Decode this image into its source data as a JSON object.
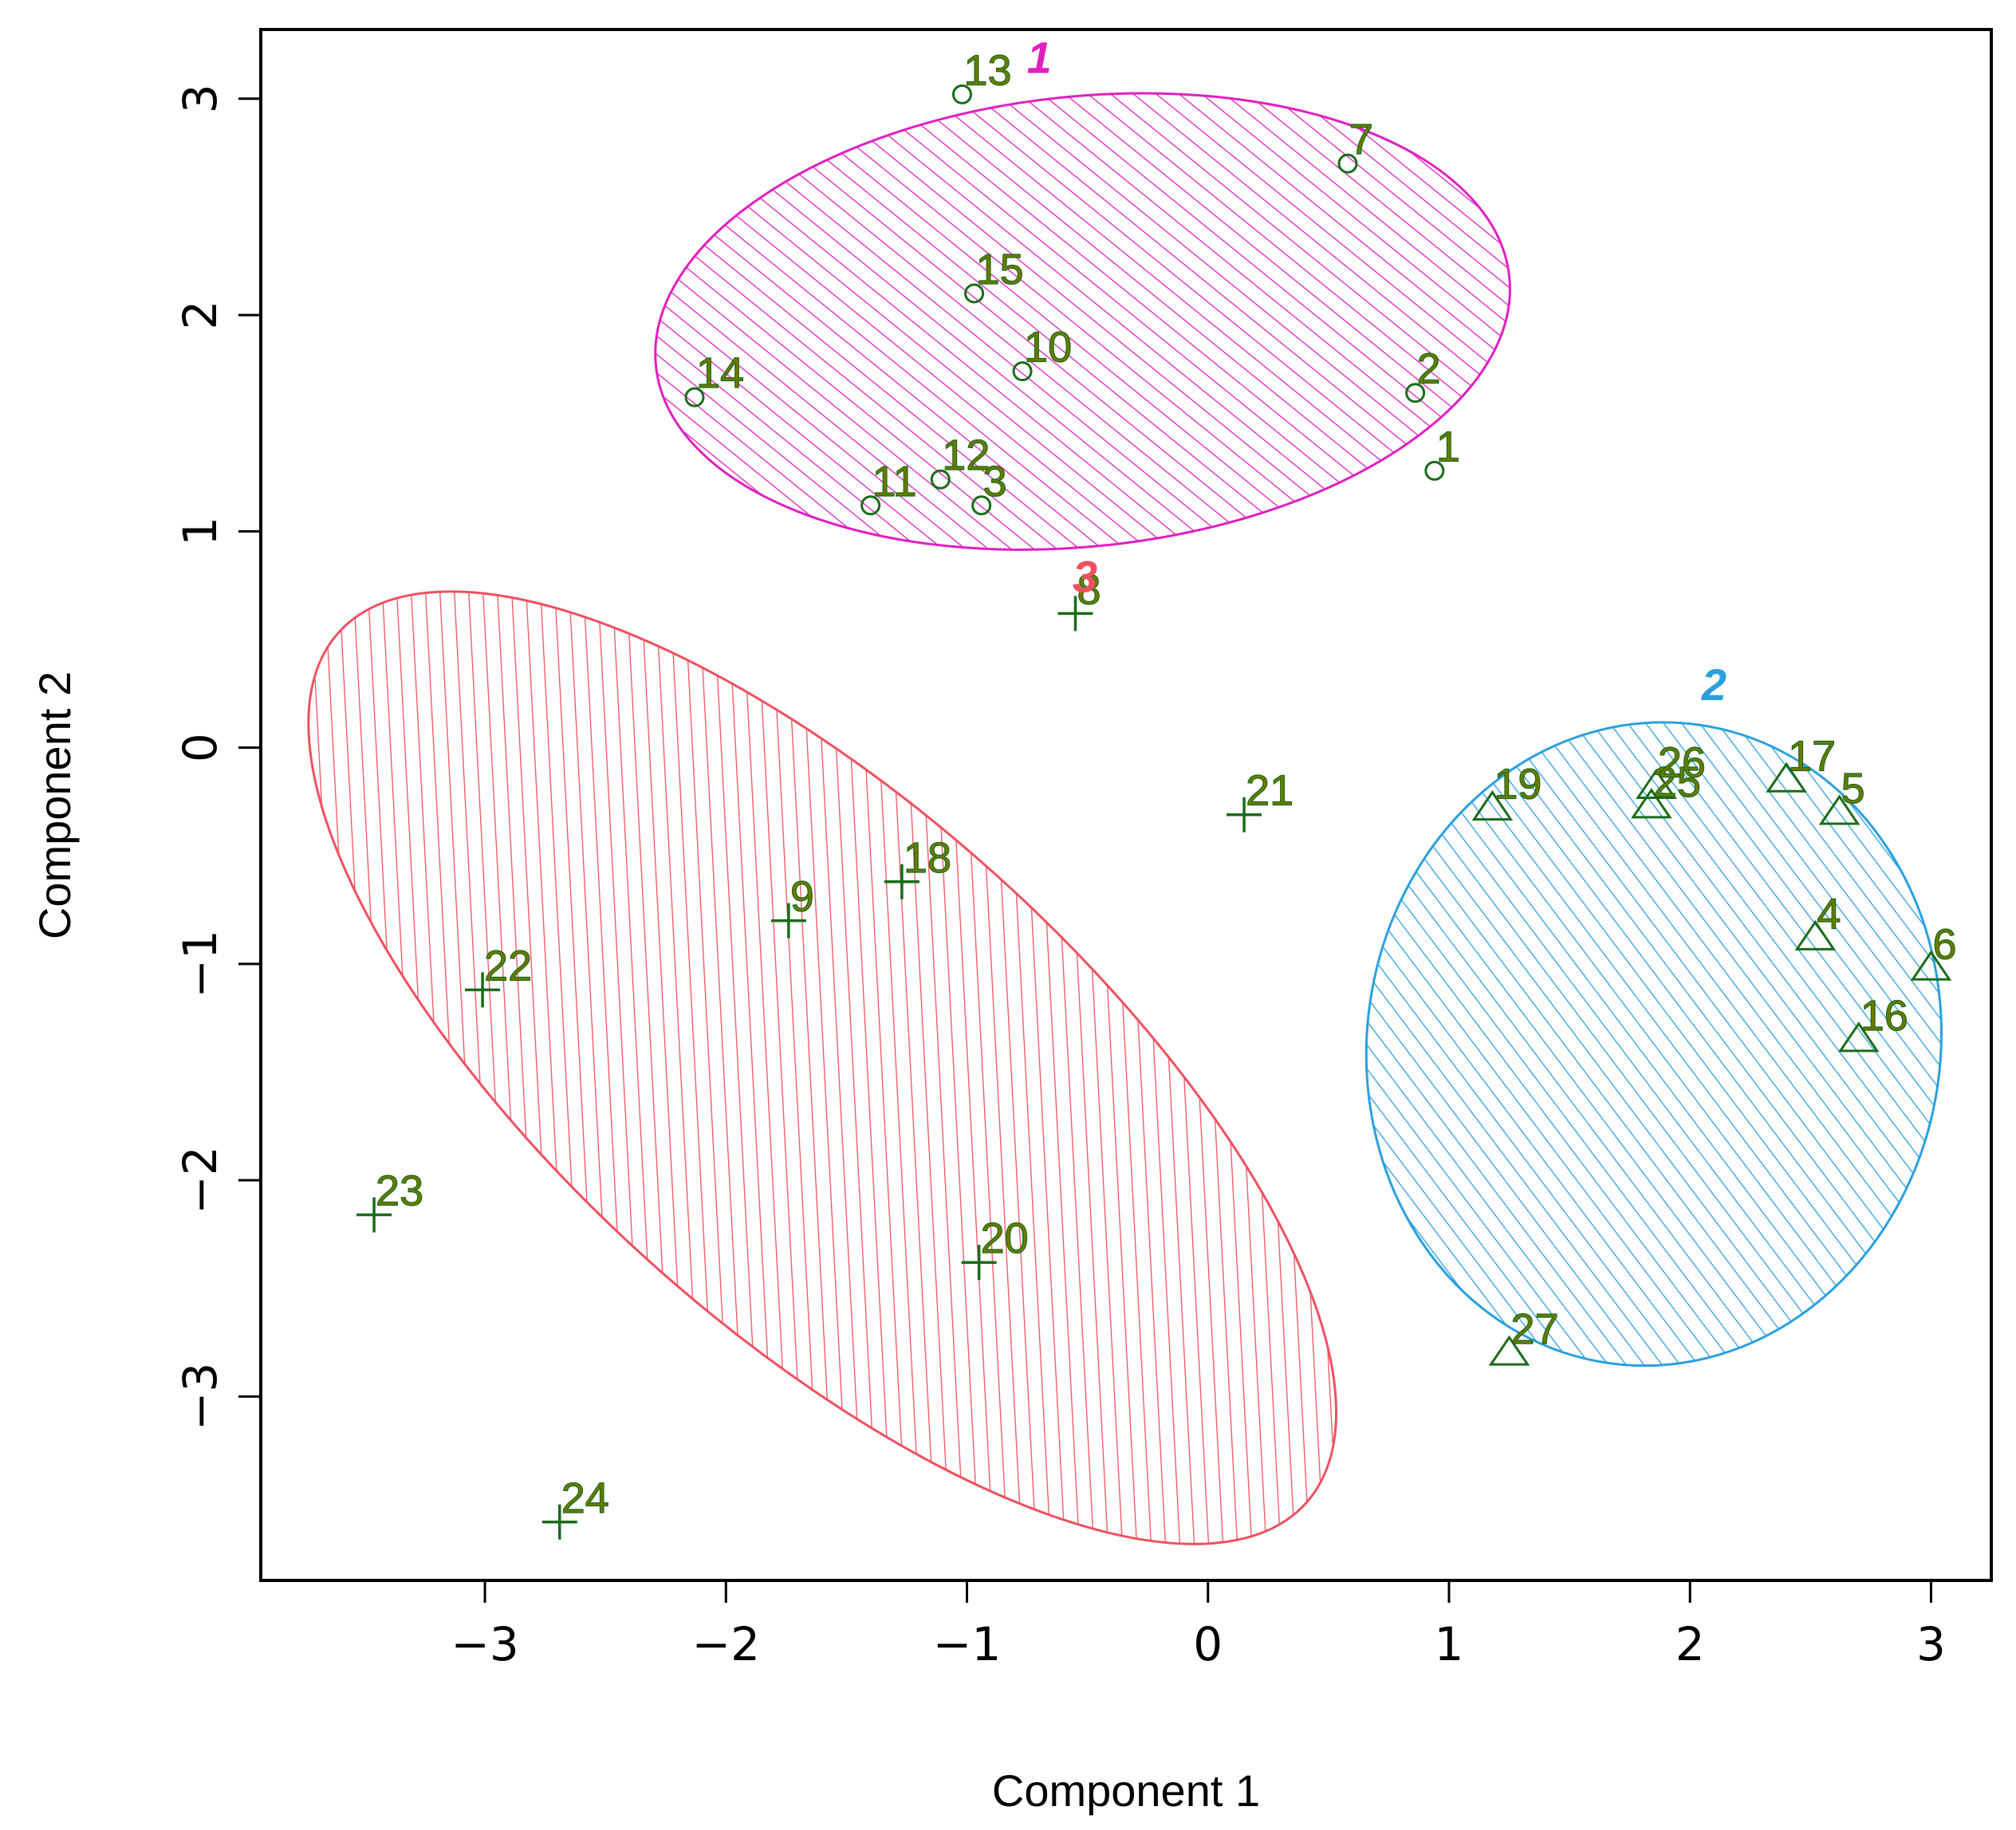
{
  "chart_data": {
    "type": "scatter",
    "title": "",
    "xlabel": "Component 1",
    "ylabel": "Component 2",
    "xlim": [
      -3.93,
      3.25
    ],
    "ylim": [
      -3.85,
      3.32
    ],
    "xticks": [
      -3,
      -2,
      -1,
      0,
      1,
      2,
      3
    ],
    "yticks": [
      -3,
      -2,
      -1,
      0,
      1,
      2,
      3
    ],
    "xtick_labels": [
      "−3",
      "−2",
      "−1",
      "0",
      "1",
      "2",
      "3"
    ],
    "ytick_labels": [
      "−3",
      "−2",
      "−1",
      "0",
      "1",
      "2",
      "3"
    ],
    "point_color": "#1a6b1a",
    "label_color": "#6b7a00",
    "clusters": [
      {
        "id": "1",
        "color": "#e020c0",
        "shape": "circle",
        "ellipse": {
          "cx": -0.52,
          "cy": 1.97,
          "rx": 1.78,
          "ry": 1.04,
          "angle_deg": -6
        },
        "label_pos": [
          -0.7,
          3.12
        ],
        "points": [
          {
            "label": "1",
            "x": 0.94,
            "y": 1.28
          },
          {
            "label": "2",
            "x": 0.86,
            "y": 1.64
          },
          {
            "label": "3",
            "x": -0.94,
            "y": 1.12
          },
          {
            "label": "7",
            "x": 0.58,
            "y": 2.7
          },
          {
            "label": "10",
            "x": -0.77,
            "y": 1.74
          },
          {
            "label": "11",
            "x": -1.4,
            "y": 1.12
          },
          {
            "label": "12",
            "x": -1.11,
            "y": 1.24
          },
          {
            "label": "13",
            "x": -1.02,
            "y": 3.02
          },
          {
            "label": "14",
            "x": -2.13,
            "y": 1.62
          },
          {
            "label": "15",
            "x": -0.97,
            "y": 2.1
          }
        ]
      },
      {
        "id": "2",
        "color": "#2aa0e0",
        "shape": "triangle",
        "ellipse": {
          "cx": 1.85,
          "cy": -1.37,
          "rx": 1.19,
          "ry": 1.49,
          "angle_deg": 8
        },
        "label_pos": [
          2.1,
          0.22
        ],
        "points": [
          {
            "label": "4",
            "x": 2.52,
            "y": -0.88
          },
          {
            "label": "5",
            "x": 2.62,
            "y": -0.3
          },
          {
            "label": "6",
            "x": 3.0,
            "y": -1.02
          },
          {
            "label": "16",
            "x": 2.7,
            "y": -1.35
          },
          {
            "label": "17",
            "x": 2.4,
            "y": -0.15
          },
          {
            "label": "19",
            "x": 1.18,
            "y": -0.28
          },
          {
            "label": "25",
            "x": 1.84,
            "y": -0.27
          },
          {
            "label": "26",
            "x": 1.86,
            "y": -0.18
          },
          {
            "label": "27",
            "x": 1.25,
            "y": -2.8
          }
        ]
      },
      {
        "id": "3",
        "color": "#f05060",
        "shape": "plus",
        "ellipse": {
          "cx": -1.6,
          "cy": -1.48,
          "rx": 2.7,
          "ry": 1.2,
          "angle_deg": 42
        },
        "label_pos": [
          -0.51,
          0.72
        ],
        "points": [
          {
            "label": "8",
            "x": -0.55,
            "y": 0.62
          },
          {
            "label": "9",
            "x": -1.74,
            "y": -0.8
          },
          {
            "label": "18",
            "x": -1.27,
            "y": -0.62
          },
          {
            "label": "20",
            "x": -0.95,
            "y": -2.38
          },
          {
            "label": "21",
            "x": 0.15,
            "y": -0.31
          },
          {
            "label": "22",
            "x": -3.01,
            "y": -1.12
          },
          {
            "label": "23",
            "x": -3.46,
            "y": -2.16
          },
          {
            "label": "24",
            "x": -2.69,
            "y": -3.58
          }
        ]
      }
    ]
  }
}
